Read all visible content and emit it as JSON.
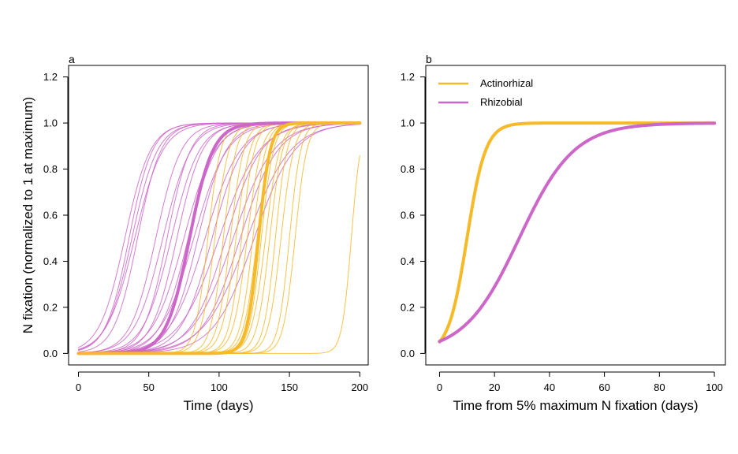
{
  "colors": {
    "actinorhizal": "#F6B928",
    "rhizobial": "#CC66C8",
    "axis": "#000000"
  },
  "shared": {
    "ylabel": "N fixation (normalized to 1 at maximum)"
  },
  "chart_data": [
    {
      "panel": "a",
      "type": "line",
      "title": "",
      "xlabel": "Time (days)",
      "xlim": [
        -7,
        206
      ],
      "ylim": [
        -0.05,
        1.25
      ],
      "xticks": [
        0,
        50,
        100,
        150,
        200
      ],
      "yticks": [
        0.0,
        0.2,
        0.4,
        0.6,
        0.8,
        1.0,
        1.2
      ],
      "ytick_labels": [
        "0.0",
        "0.2",
        "0.4",
        "0.6",
        "0.8",
        "1.0",
        "1.2"
      ],
      "grid": false,
      "model": "logistic y = 1/(1+exp(-r*(x - t50))), x from 0 to 200",
      "series": [
        {
          "name": "Rhizobial (individual)",
          "group": "rhizobial",
          "weight": "thin",
          "curves": [
            {
              "t50": 33,
              "r": 0.11
            },
            {
              "t50": 36,
              "r": 0.12
            },
            {
              "t50": 38,
              "r": 0.11
            },
            {
              "t50": 40,
              "r": 0.1
            },
            {
              "t50": 42,
              "r": 0.12
            },
            {
              "t50": 55,
              "r": 0.11
            },
            {
              "t50": 60,
              "r": 0.1
            },
            {
              "t50": 63,
              "r": 0.12
            },
            {
              "t50": 66,
              "r": 0.1
            },
            {
              "t50": 70,
              "r": 0.11
            },
            {
              "t50": 75,
              "r": 0.09
            },
            {
              "t50": 78,
              "r": 0.1
            },
            {
              "t50": 82,
              "r": 0.085
            },
            {
              "t50": 85,
              "r": 0.1
            },
            {
              "t50": 90,
              "r": 0.08
            },
            {
              "t50": 95,
              "r": 0.09
            },
            {
              "t50": 100,
              "r": 0.07
            },
            {
              "t50": 105,
              "r": 0.08
            },
            {
              "t50": 110,
              "r": 0.07
            },
            {
              "t50": 115,
              "r": 0.075
            },
            {
              "t50": 120,
              "r": 0.065
            },
            {
              "t50": 125,
              "r": 0.07
            }
          ]
        },
        {
          "name": "Actinorhizal (individual)",
          "group": "actinorhizal",
          "weight": "thin",
          "curves": [
            {
              "t50": 92,
              "r": 0.22
            },
            {
              "t50": 97,
              "r": 0.2
            },
            {
              "t50": 103,
              "r": 0.22
            },
            {
              "t50": 108,
              "r": 0.21
            },
            {
              "t50": 112,
              "r": 0.2
            },
            {
              "t50": 116,
              "r": 0.22
            },
            {
              "t50": 120,
              "r": 0.2
            },
            {
              "t50": 124,
              "r": 0.22
            },
            {
              "t50": 127,
              "r": 0.21
            },
            {
              "t50": 130,
              "r": 0.23
            },
            {
              "t50": 133,
              "r": 0.2
            },
            {
              "t50": 136,
              "r": 0.22
            },
            {
              "t50": 140,
              "r": 0.24
            },
            {
              "t50": 144,
              "r": 0.22
            },
            {
              "t50": 150,
              "r": 0.25
            },
            {
              "t50": 154,
              "r": 0.24
            },
            {
              "t50": 194,
              "r": 0.3
            }
          ]
        },
        {
          "name": "Rhizobial (mean)",
          "group": "rhizobial",
          "weight": "bold",
          "curves": [
            {
              "t50": 79,
              "r": 0.12
            }
          ]
        },
        {
          "name": "Actinorhizal (mean)",
          "group": "actinorhizal",
          "weight": "bold",
          "curves": [
            {
              "t50": 128,
              "r": 0.24
            }
          ]
        }
      ]
    },
    {
      "panel": "b",
      "type": "line",
      "title": "",
      "xlabel": "Time from 5% maximum N fixation (days)",
      "xlim": [
        -5,
        104
      ],
      "ylim": [
        -0.05,
        1.25
      ],
      "xticks": [
        0,
        20,
        40,
        60,
        80,
        100
      ],
      "yticks": [
        0.0,
        0.2,
        0.4,
        0.6,
        0.8,
        1.0,
        1.2
      ],
      "ytick_labels": [
        "0.0",
        "0.2",
        "0.4",
        "0.6",
        "0.8",
        "1.0",
        "1.2"
      ],
      "grid": false,
      "legend_position": "top-left",
      "model": "logistic y = 1/(1+exp(-r*(x - t50))), x from 0 to 100",
      "series": [
        {
          "name": "Actinorhizal",
          "group": "actinorhizal",
          "weight": "bold",
          "curves": [
            {
              "t50": 10,
              "r": 0.295
            }
          ]
        },
        {
          "name": "Rhizobial",
          "group": "rhizobial",
          "weight": "bold",
          "curves": [
            {
              "t50": 29,
              "r": 0.1
            }
          ]
        }
      ],
      "legend": [
        {
          "label": "Actinorhizal",
          "group": "actinorhizal"
        },
        {
          "label": "Rhizobial",
          "group": "rhizobial"
        }
      ]
    }
  ]
}
